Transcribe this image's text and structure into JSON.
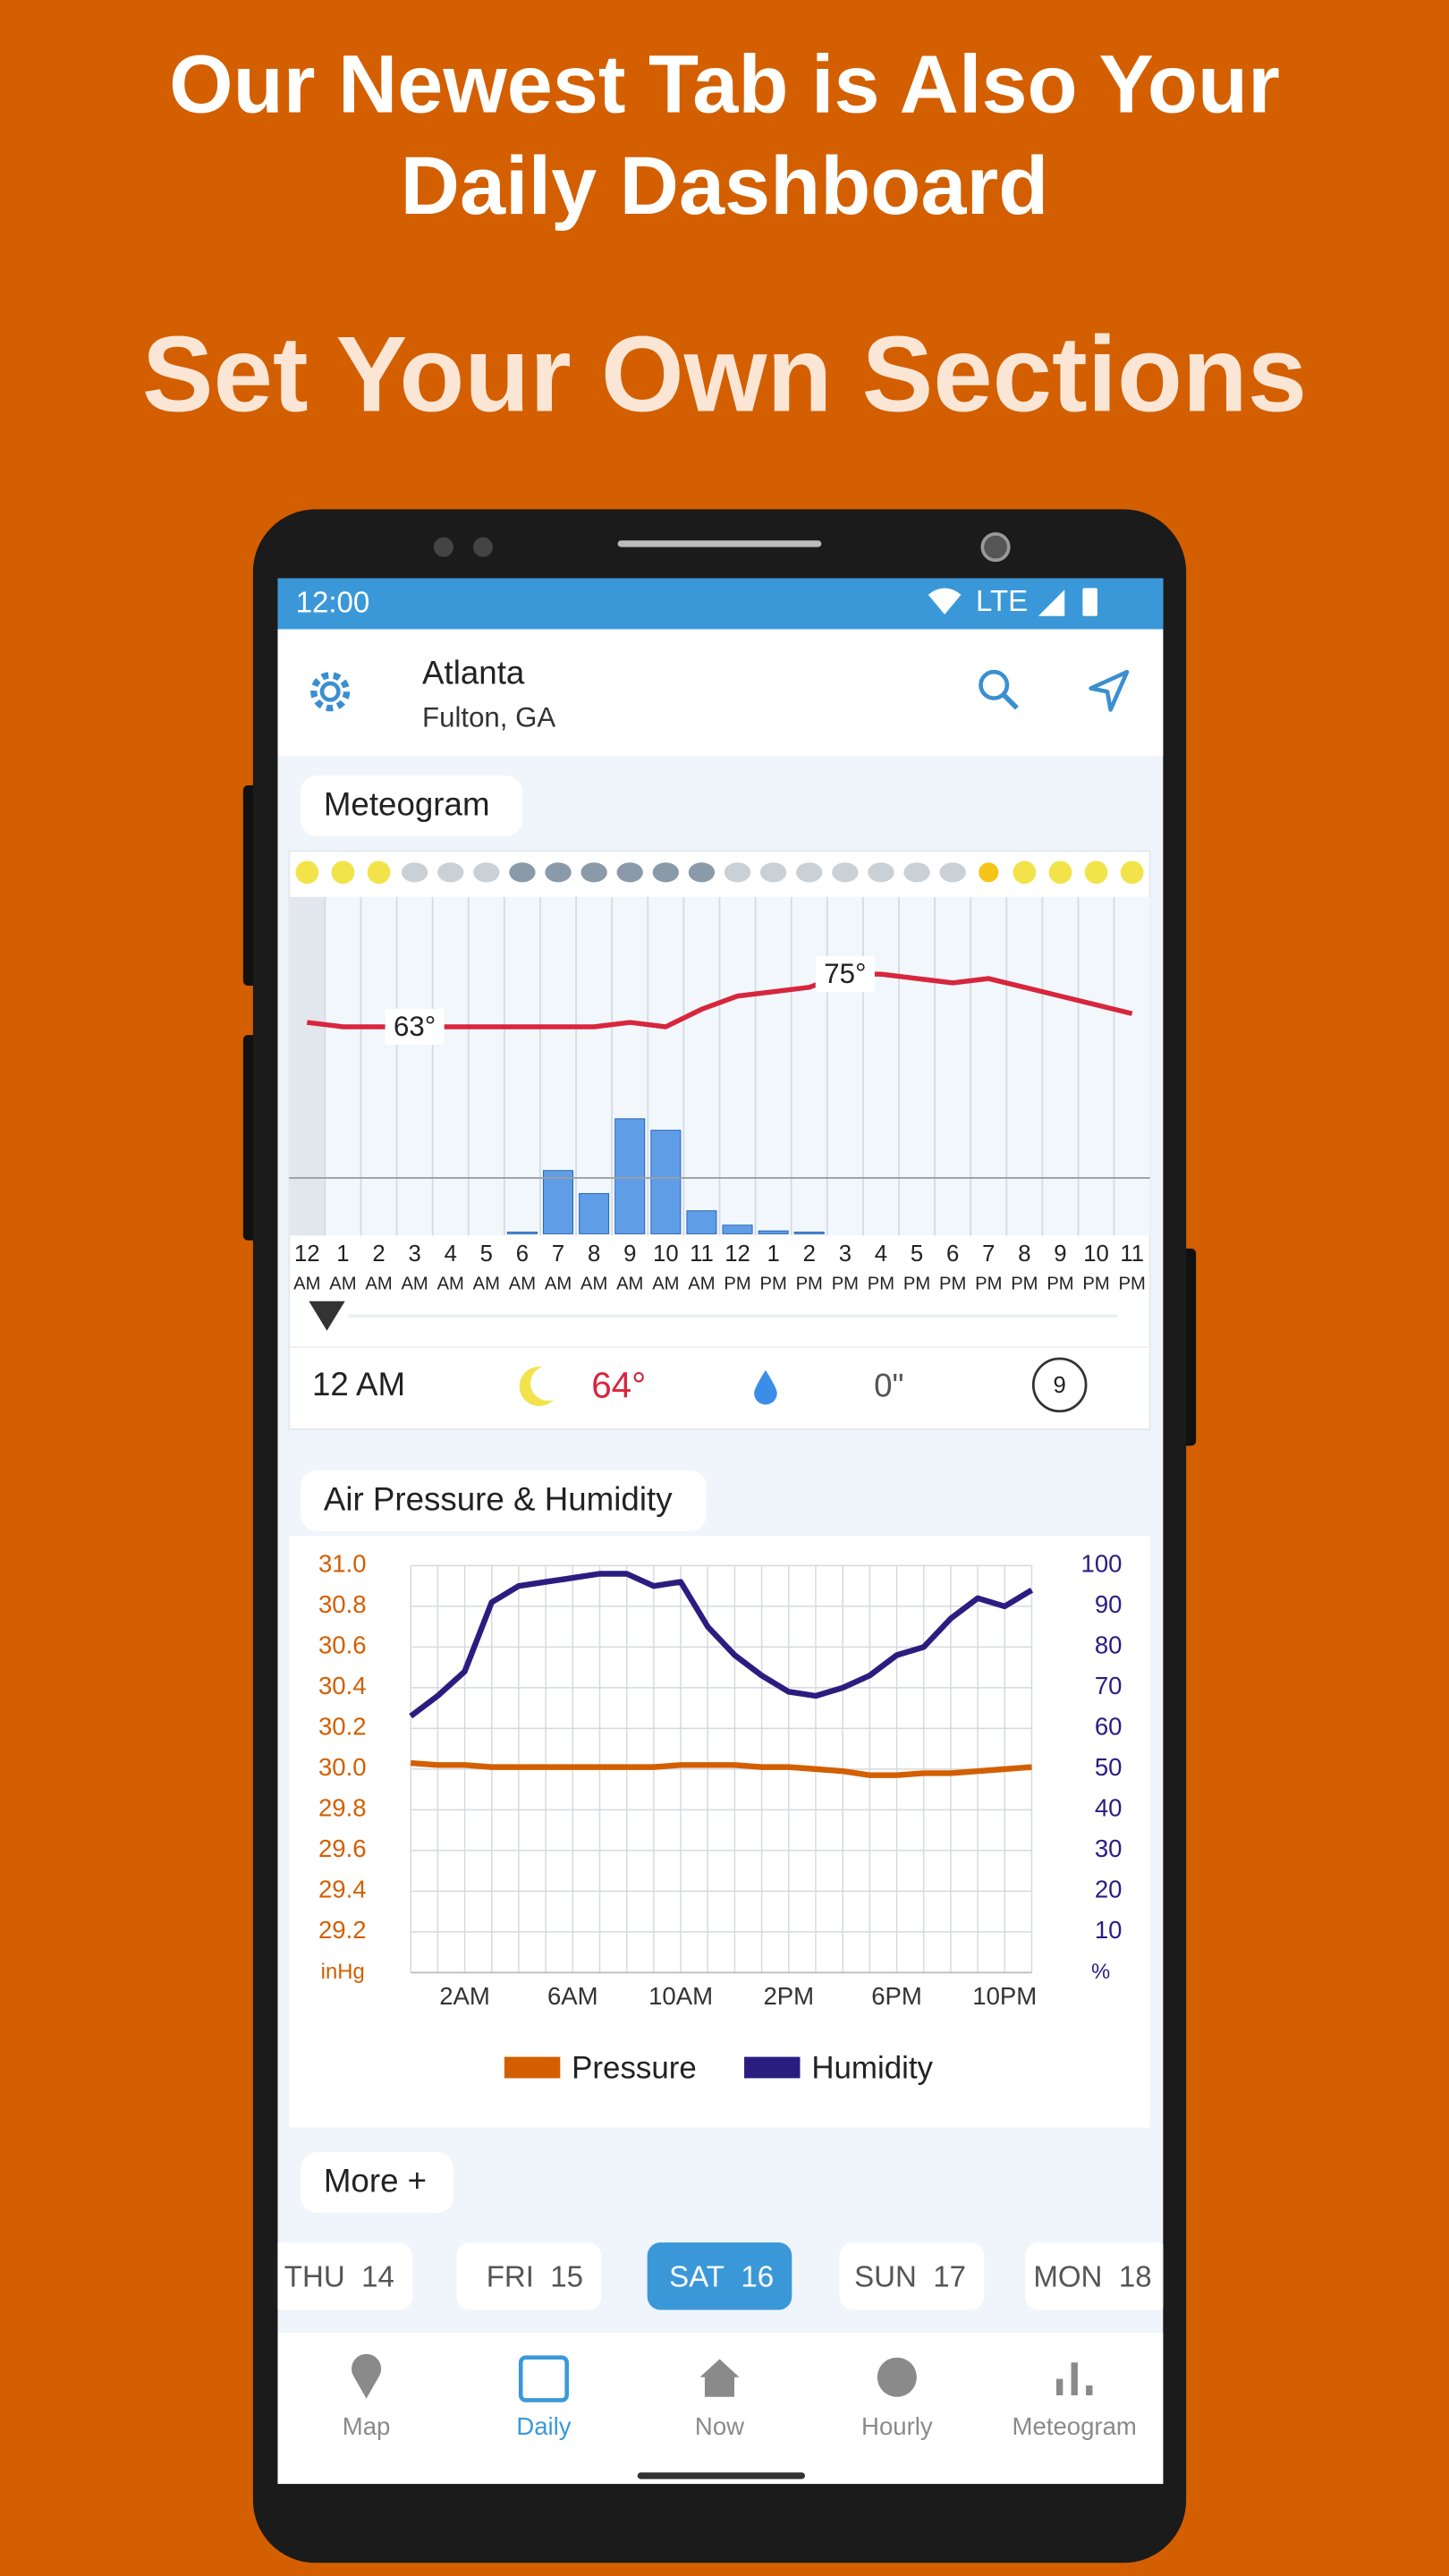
{
  "header": {
    "title_lines": [
      "Our Newest Tab is Also Your",
      "Daily Dashboard"
    ],
    "subtitle": "Set Your Own Sections"
  },
  "status_bar": {
    "time": "12:00",
    "network": "LTE"
  },
  "location": {
    "city": "Atlanta",
    "region": "Fulton, GA"
  },
  "meteogram": {
    "title": "Meteogram",
    "hours": [
      [
        "12",
        "AM"
      ],
      [
        "1",
        "AM"
      ],
      [
        "2",
        "AM"
      ],
      [
        "3",
        "AM"
      ],
      [
        "4",
        "AM"
      ],
      [
        "5",
        "AM"
      ],
      [
        "6",
        "AM"
      ],
      [
        "7",
        "AM"
      ],
      [
        "8",
        "AM"
      ],
      [
        "9",
        "AM"
      ],
      [
        "10",
        "AM"
      ],
      [
        "11",
        "AM"
      ],
      [
        "12",
        "PM"
      ],
      [
        "1",
        "PM"
      ],
      [
        "2",
        "PM"
      ],
      [
        "3",
        "PM"
      ],
      [
        "4",
        "PM"
      ],
      [
        "5",
        "PM"
      ],
      [
        "6",
        "PM"
      ],
      [
        "7",
        "PM"
      ],
      [
        "8",
        "PM"
      ],
      [
        "9",
        "PM"
      ],
      [
        "10",
        "PM"
      ],
      [
        "11",
        "PM"
      ]
    ],
    "temperature": [
      64,
      63,
      63,
      63,
      63,
      63,
      63,
      63,
      63,
      64,
      63,
      67,
      70,
      71,
      72,
      75,
      75,
      74,
      73,
      74,
      72,
      70,
      68,
      66
    ],
    "temperature_labels": [
      null,
      null,
      null,
      "63°",
      null,
      null,
      null,
      null,
      null,
      null,
      null,
      null,
      null,
      null,
      null,
      "75°",
      null,
      null,
      null,
      null,
      null,
      null,
      null,
      null
    ],
    "temperature_color": "#d7263d",
    "precipitation": [
      0,
      0,
      0,
      0,
      0,
      0,
      0.003,
      0.11,
      0.07,
      0.2,
      0.18,
      0.04,
      0.015,
      0.005,
      0.003,
      0,
      0,
      0,
      0,
      0,
      0,
      0,
      0,
      0
    ],
    "precipitation_color": "#2f7fe0",
    "current": {
      "time": "12 AM",
      "temperature": "64°",
      "precipitation": "0\"",
      "uv_index": "9"
    }
  },
  "pressure_humidity": {
    "type": "line",
    "title": "Air Pressure & Humidity",
    "x": [
      0,
      1,
      2,
      3,
      4,
      5,
      6,
      7,
      8,
      9,
      10,
      11,
      12,
      13,
      14,
      15,
      16,
      17,
      18,
      19,
      20,
      21,
      22,
      23
    ],
    "xlim": [
      0,
      23
    ],
    "xticks": [
      {
        "value": 2,
        "label": "2AM"
      },
      {
        "value": 6,
        "label": "6AM"
      },
      {
        "value": 10,
        "label": "10AM"
      },
      {
        "value": 14,
        "label": "2PM"
      },
      {
        "value": 18,
        "label": "6PM"
      },
      {
        "value": 22,
        "label": "10PM"
      }
    ],
    "ylim": [
      29.0,
      31.0
    ],
    "yticks": [
      29.2,
      29.4,
      29.6,
      29.8,
      {
        "value": 30,
        "label": "30.0"
      },
      30.2,
      30.4,
      30.6,
      30.8,
      {
        "value": 31,
        "label": "31.0"
      }
    ],
    "y_unit": "inHg",
    "y2lim": [
      0,
      100
    ],
    "y2ticks": [
      10,
      20,
      30,
      40,
      50,
      60,
      70,
      80,
      90,
      100
    ],
    "y2_unit": "%",
    "grid": true,
    "series": [
      {
        "name": "Pressure",
        "color": "#d35f00",
        "values": [
          30.03,
          30.02,
          30.02,
          30.01,
          30.01,
          30.01,
          30.01,
          30.01,
          30.01,
          30.01,
          30.02,
          30.02,
          30.02,
          30.01,
          30.01,
          30.0,
          29.99,
          29.97,
          29.97,
          29.98,
          29.98,
          29.99,
          30.0,
          30.01
        ]
      },
      {
        "name": "Humidity",
        "color": "#2b1d80",
        "axis": "y2",
        "values": [
          63,
          68,
          74,
          91,
          95,
          96,
          97,
          98,
          98,
          95,
          96,
          85,
          78,
          73,
          69,
          68,
          70,
          73,
          78,
          80,
          87,
          92,
          90,
          94
        ]
      }
    ]
  },
  "more_button": "More +",
  "day_tabs": [
    {
      "day": "THU",
      "date": "14",
      "selected": false
    },
    {
      "day": "FRI",
      "date": "15",
      "selected": false
    },
    {
      "day": "SAT",
      "date": "16",
      "selected": true
    },
    {
      "day": "SUN",
      "date": "17",
      "selected": false
    },
    {
      "day": "MON",
      "date": "18",
      "selected": false
    }
  ],
  "bottom_nav": [
    {
      "label": "Map",
      "active": false
    },
    {
      "label": "Daily",
      "active": true
    },
    {
      "label": "Now",
      "active": false
    },
    {
      "label": "Hourly",
      "active": false
    },
    {
      "label": "Meteogram",
      "active": false
    }
  ]
}
